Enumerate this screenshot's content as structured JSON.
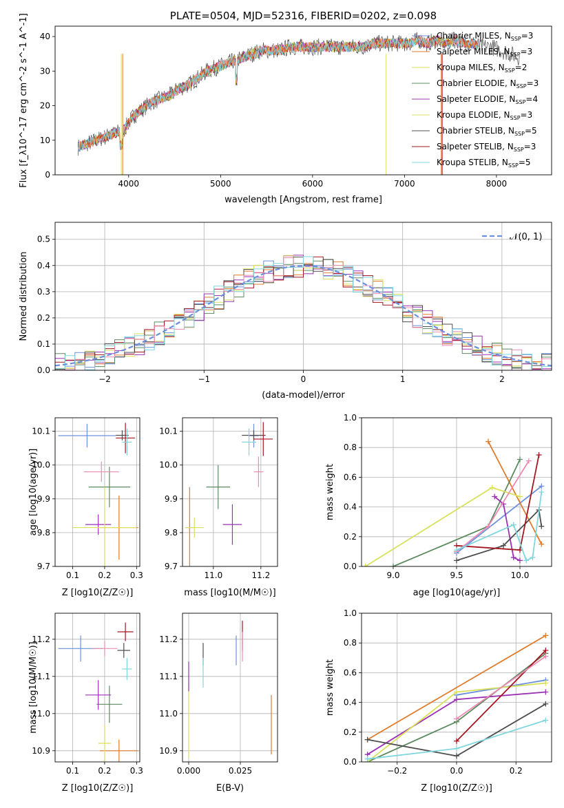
{
  "colors": {
    "c1": "#6a8fdc",
    "c2": "#e07b2c",
    "c3": "#5b8a5f",
    "c4": "#9b30b5",
    "c5": "#d9e05a",
    "c6": "#4d4d4d",
    "c7": "#a31620",
    "c8": "#ec8bb2",
    "c9": "#7fd6de"
  },
  "chart_data": [
    {
      "type": "line",
      "title": "PLATE=0504, MJD=52316, FIBERID=0202, z=0.098",
      "xlabel": "wavelength [Angstrom, rest frame]",
      "ylabel": "Flux [f_λ10^-17 erg cm^-2 s^-1 A^-1]",
      "xlim": [
        3200,
        8600
      ],
      "ylim": [
        0,
        43
      ],
      "xticks": [
        "4000",
        "5000",
        "6000",
        "7000",
        "8000"
      ],
      "yticks": [
        "0",
        "10",
        "20",
        "30",
        "40"
      ],
      "legend_position": "top-right",
      "legend": [
        {
          "label": "Chabrier MILES, N",
          "sub": "SSP",
          "suffix": "=3",
          "color": "c1"
        },
        {
          "label": "Salpeter MILES, N",
          "sub": "SSP",
          "suffix": "=3",
          "color": "c2"
        },
        {
          "label": "Kroupa MILES, N",
          "sub": "SSP",
          "suffix": "=2",
          "color": "c5"
        },
        {
          "label": "Chabrier ELODIE, N",
          "sub": "SSP",
          "suffix": "=3",
          "color": "c3"
        },
        {
          "label": "Salpeter ELODIE, N",
          "sub": "SSP",
          "suffix": "=4",
          "color": "c4"
        },
        {
          "label": "Kroupa ELODIE, N",
          "sub": "SSP",
          "suffix": "=3",
          "color": "c5"
        },
        {
          "label": "Chabrier STELIB, N",
          "sub": "SSP",
          "suffix": "=5",
          "color": "c6"
        },
        {
          "label": "Salpeter STELIB, N",
          "sub": "SSP",
          "suffix": "=3",
          "color": "c7"
        },
        {
          "label": "Kroupa STELIB, N",
          "sub": "SSP",
          "suffix": "=5",
          "color": "c9"
        }
      ],
      "spectrum_x": [
        3450,
        3550,
        3650,
        3750,
        3850,
        3950,
        4050,
        4150,
        4250,
        4350,
        4450,
        4550,
        4650,
        4750,
        4850,
        4950,
        5050,
        5150,
        5250,
        5350,
        5450,
        5550,
        5650,
        5750,
        5850,
        5950,
        6050,
        6150,
        6250,
        6350,
        6450,
        6550,
        6650,
        6750,
        6850,
        6950,
        7050,
        7150,
        7250,
        7350,
        7450,
        7550,
        7650,
        7750,
        7850,
        7950,
        8050,
        8150,
        8250
      ],
      "spectrum_y": [
        8,
        9,
        10,
        11,
        12,
        13,
        17,
        19,
        21,
        22,
        23,
        25,
        26,
        28,
        30,
        31,
        32,
        33,
        34,
        35,
        36,
        36,
        36,
        37,
        37,
        37,
        37,
        37,
        37,
        37,
        37,
        37,
        38,
        38,
        38,
        38,
        38,
        39,
        38,
        39,
        38,
        39,
        38,
        38,
        37,
        37,
        36,
        35,
        34
      ]
    },
    {
      "type": "step",
      "xlabel": "(data-model)/error",
      "ylabel": "Normed distribution",
      "xlim": [
        -2.5,
        2.5
      ],
      "ylim": [
        0,
        0.565
      ],
      "xticks": [
        "−2",
        "−1",
        "0",
        "1",
        "2"
      ],
      "yticks": [
        "0.0",
        "0.1",
        "0.2",
        "0.3",
        "0.4",
        "0.5"
      ],
      "legend": "𝒩(0, 1)",
      "legend_position": "top-right",
      "gaussian": {
        "mean": 0,
        "sigma": 1
      }
    },
    {
      "type": "errorbar",
      "xlabel": "Z [log10(Z/Z☉)]",
      "ylabel": "age  [log10(age/yr)]",
      "xlim": [
        0.045,
        0.31
      ],
      "ylim": [
        9.7,
        10.14
      ],
      "xticks": [
        "0.1",
        "0.2",
        "0.3"
      ],
      "yticks": [
        "9.7",
        "9.8",
        "9.9",
        "10.0",
        "10.1"
      ],
      "points": [
        {
          "x": 0.145,
          "y": 10.087,
          "xe": 0.09,
          "ye": 0.035,
          "color": "c1"
        },
        {
          "x": 0.245,
          "y": 9.815,
          "xe": 0.06,
          "ye": 0.095,
          "color": "c2"
        },
        {
          "x": 0.215,
          "y": 9.935,
          "xe": 0.065,
          "ye": 0.06,
          "color": "c3"
        },
        {
          "x": 0.18,
          "y": 9.824,
          "xe": 0.04,
          "ye": 0.03,
          "color": "c4"
        },
        {
          "x": 0.2,
          "y": 9.815,
          "xe": 0.1,
          "ye": 0.12,
          "color": "c5"
        },
        {
          "x": 0.255,
          "y": 10.088,
          "xe": 0.02,
          "ye": 0.015,
          "color": "c6"
        },
        {
          "x": 0.265,
          "y": 10.08,
          "xe": 0.03,
          "ye": 0.045,
          "color": "c7"
        },
        {
          "x": 0.19,
          "y": 9.98,
          "xe": 0.055,
          "ye": 0.03,
          "color": "c8"
        },
        {
          "x": 0.27,
          "y": 10.068,
          "xe": 0.015,
          "ye": 0.04,
          "color": "c9"
        }
      ]
    },
    {
      "type": "errorbar",
      "xlabel": "mass [log10(M/M☉)]",
      "ylabel": "",
      "xlim": [
        10.87,
        11.27
      ],
      "ylim": [
        9.7,
        10.14
      ],
      "xticks": [
        "11.0",
        "11.2"
      ],
      "yticks": [
        "9.7",
        "9.8",
        "9.9",
        "10.0",
        "10.1"
      ],
      "points": [
        {
          "x": 11.17,
          "y": 10.087,
          "xe": 0.02,
          "ye": 0.035,
          "color": "c1"
        },
        {
          "x": 10.9,
          "y": 9.815,
          "xe": 0.015,
          "ye": 0.12,
          "color": "c2"
        },
        {
          "x": 11.02,
          "y": 9.935,
          "xe": 0.05,
          "ye": 0.065,
          "color": "c3"
        },
        {
          "x": 11.08,
          "y": 9.824,
          "xe": 0.04,
          "ye": 0.06,
          "color": "c4"
        },
        {
          "x": 10.92,
          "y": 9.815,
          "xe": 0.04,
          "ye": 0.03,
          "color": "c5"
        },
        {
          "x": 11.17,
          "y": 10.088,
          "xe": 0.05,
          "ye": 0.015,
          "color": "c6"
        },
        {
          "x": 11.21,
          "y": 10.077,
          "xe": 0.04,
          "ye": 0.05,
          "color": "c7"
        },
        {
          "x": 11.19,
          "y": 9.98,
          "xe": 0.02,
          "ye": 0.045,
          "color": "c8"
        },
        {
          "x": 11.15,
          "y": 10.068,
          "xe": 0.03,
          "ye": 0.04,
          "color": "c9"
        }
      ]
    },
    {
      "type": "line",
      "xlabel": "age  [log10(age/yr)]",
      "ylabel": "mass weight",
      "xlim": [
        8.75,
        10.25
      ],
      "ylim": [
        0,
        1
      ],
      "xticks": [
        "9.0",
        "9.5",
        "10.0"
      ],
      "yticks": [
        "0.0",
        "0.2",
        "0.4",
        "0.6",
        "0.8",
        "1.0"
      ],
      "series": [
        {
          "color": "c1",
          "x": [
            9.5,
            10.17
          ],
          "y": [
            0.09,
            0.54
          ]
        },
        {
          "color": "c2",
          "x": [
            9.75,
            10.17
          ],
          "y": [
            0.84,
            0.15
          ]
        },
        {
          "color": "c3",
          "x": [
            9.0,
            9.75,
            10.0
          ],
          "y": [
            0.0,
            0.27,
            0.72
          ]
        },
        {
          "color": "c4",
          "x": [
            9.8,
            9.87,
            9.95,
            10.0
          ],
          "y": [
            0.47,
            0.42,
            0.06,
            0.04
          ]
        },
        {
          "color": "c5",
          "x": [
            8.78,
            9.78,
            10.0
          ],
          "y": [
            0.0,
            0.53,
            0.47
          ]
        },
        {
          "color": "c6",
          "x": [
            9.5,
            9.87,
            10.15,
            10.17
          ],
          "y": [
            0.04,
            0.14,
            0.38,
            0.27
          ]
        },
        {
          "color": "c7",
          "x": [
            9.5,
            10.0,
            10.15
          ],
          "y": [
            0.14,
            0.11,
            0.75
          ]
        },
        {
          "color": "c8",
          "x": [
            9.5,
            9.75,
            10.07
          ],
          "y": [
            0.1,
            0.27,
            0.71
          ]
        },
        {
          "color": "c9",
          "x": [
            9.5,
            9.95,
            10.05,
            10.1,
            10.17
          ],
          "y": [
            0.11,
            0.28,
            0.04,
            0.06,
            0.5
          ]
        }
      ]
    },
    {
      "type": "errorbar",
      "xlabel": "Z [log10(Z/Z☉)]",
      "ylabel": "mass [log10(M/M☉)]",
      "xlim": [
        0.045,
        0.31
      ],
      "ylim": [
        10.87,
        11.27
      ],
      "xticks": [
        "0.1",
        "0.2",
        "0.3"
      ],
      "yticks": [
        "10.9",
        "11.0",
        "11.1",
        "11.2"
      ],
      "points": [
        {
          "x": 0.125,
          "y": 11.175,
          "xe": 0.07,
          "ye": 0.035,
          "color": "c1"
        },
        {
          "x": 0.245,
          "y": 10.9,
          "xe": 0.06,
          "ye": 0.03,
          "color": "c2"
        },
        {
          "x": 0.215,
          "y": 11.025,
          "xe": 0.04,
          "ye": 0.05,
          "color": "c3"
        },
        {
          "x": 0.18,
          "y": 11.05,
          "xe": 0.04,
          "ye": 0.04,
          "color": "c4"
        },
        {
          "x": 0.2,
          "y": 10.92,
          "xe": 0.02,
          "ye": 0.05,
          "color": "c5"
        },
        {
          "x": 0.26,
          "y": 11.17,
          "xe": 0.02,
          "ye": 0.02,
          "color": "c6"
        },
        {
          "x": 0.265,
          "y": 11.22,
          "xe": 0.025,
          "ye": 0.025,
          "color": "c7"
        },
        {
          "x": 0.2,
          "y": 11.175,
          "xe": 0.04,
          "ye": 0.02,
          "color": "c8"
        },
        {
          "x": 0.27,
          "y": 11.12,
          "xe": 0.015,
          "ye": 0.03,
          "color": "c9"
        }
      ]
    },
    {
      "type": "errorbar",
      "xlabel": "E(B-V)",
      "ylabel": "",
      "xlim": [
        -0.003,
        0.043
      ],
      "ylim": [
        10.87,
        11.27
      ],
      "xticks": [
        "0.000",
        "0.025"
      ],
      "yticks": [
        "10.9",
        "11.0",
        "11.1",
        "11.2"
      ],
      "points": [
        {
          "x": 0.023,
          "y": 11.17,
          "xe": 0,
          "ye": 0.04,
          "color": "c1"
        },
        {
          "x": 0.04,
          "y": 10.97,
          "xe": 0,
          "ye": 0.08,
          "color": "c2"
        },
        {
          "x": 0.0,
          "y": 10.98,
          "xe": 0,
          "ye": 0.1,
          "color": "c5"
        },
        {
          "x": 0.0,
          "y": 11.1,
          "xe": 0,
          "ye": 0.04,
          "color": "c4"
        },
        {
          "x": 0.007,
          "y": 11.16,
          "xe": 0,
          "ye": 0.03,
          "color": "c6"
        },
        {
          "x": 0.007,
          "y": 11.11,
          "xe": 0,
          "ye": 0.04,
          "color": "c9"
        },
        {
          "x": 0.026,
          "y": 11.21,
          "xe": 0,
          "ye": 0.04,
          "color": "c7"
        },
        {
          "x": 0.026,
          "y": 11.18,
          "xe": 0,
          "ye": 0.04,
          "color": "c8"
        }
      ]
    },
    {
      "type": "line",
      "xlabel": "Z [log10(Z/Z☉)]",
      "ylabel": "mass weight",
      "xlim": [
        -0.32,
        0.32
      ],
      "ylim": [
        0,
        1
      ],
      "xticks": [
        "−0.2",
        "0.0",
        "0.2"
      ],
      "yticks": [
        "0.0",
        "0.2",
        "0.4",
        "0.6",
        "0.8",
        "1.0"
      ],
      "series": [
        {
          "color": "c1",
          "x": [
            0.0,
            0.3
          ],
          "y": [
            0.45,
            0.55
          ]
        },
        {
          "color": "c2",
          "x": [
            -0.3,
            0.3
          ],
          "y": [
            0.15,
            0.85
          ]
        },
        {
          "color": "c3",
          "x": [
            -0.3,
            0.0,
            0.3
          ],
          "y": [
            0.0,
            0.27,
            0.73
          ]
        },
        {
          "color": "c4",
          "x": [
            -0.3,
            0.0,
            0.3
          ],
          "y": [
            0.05,
            0.42,
            0.47
          ]
        },
        {
          "color": "c5",
          "x": [
            -0.3,
            0.0,
            0.3
          ],
          "y": [
            0.0,
            0.47,
            0.53
          ]
        },
        {
          "color": "c6",
          "x": [
            -0.3,
            0.0,
            0.3
          ],
          "y": [
            0.15,
            0.04,
            0.39
          ]
        },
        {
          "color": "c7",
          "x": [
            0.0,
            0.3
          ],
          "y": [
            0.14,
            0.75
          ]
        },
        {
          "color": "c8",
          "x": [
            0.0,
            0.3
          ],
          "y": [
            0.29,
            0.71
          ]
        },
        {
          "color": "c9",
          "x": [
            -0.3,
            0.0,
            0.3
          ],
          "y": [
            0.02,
            0.09,
            0.28
          ]
        }
      ]
    }
  ]
}
